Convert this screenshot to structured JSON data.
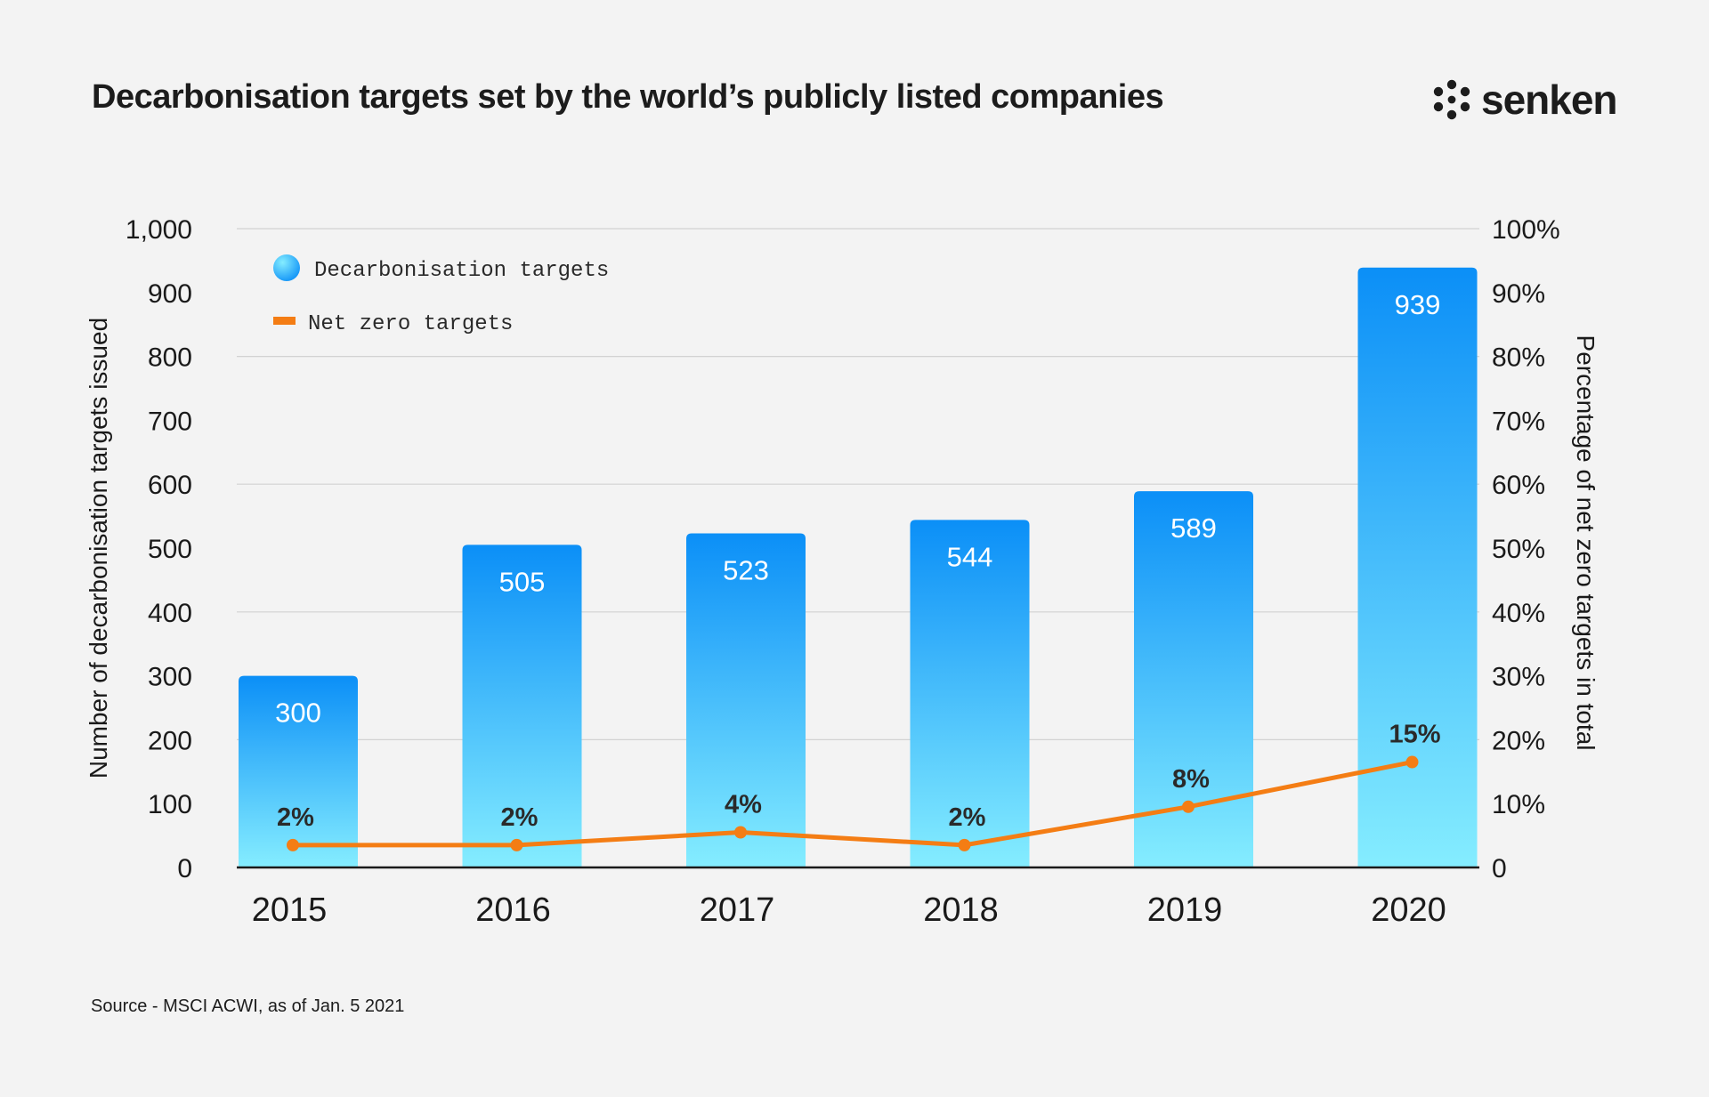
{
  "header": {
    "title": "Decarbonisation targets set by the world’s publicly listed companies",
    "brand": "senken"
  },
  "footer": {
    "source": "Source - MSCI ACWI, as of Jan. 5 2021"
  },
  "colors": {
    "bar_top": "#0b8ff7",
    "bar_bottom": "#85edff",
    "line": "#f47d14",
    "grid": "#d2d2d2",
    "axis": "#1a1a1a",
    "background": "#f3f3f3"
  },
  "chart_data": {
    "type": "bar",
    "title": "Decarbonisation targets set by the world’s publicly listed companies",
    "categories": [
      "2015",
      "2016",
      "2017",
      "2018",
      "2019",
      "2020"
    ],
    "series": [
      {
        "name": "Decarbonisation targets",
        "type": "bar",
        "axis": "left",
        "values": [
          300,
          505,
          523,
          544,
          589,
          939
        ],
        "labels": [
          "300",
          "505",
          "523",
          "544",
          "589",
          "939"
        ]
      },
      {
        "name": "Net zero targets",
        "type": "line",
        "axis": "right",
        "values": [
          2,
          2,
          4,
          2,
          8,
          15
        ],
        "labels": [
          "2%",
          "2%",
          "4%",
          "2%",
          "8%",
          "15%"
        ]
      }
    ],
    "ylabel": "Number of decarbonisation targets issued",
    "ylim": [
      0,
      1000
    ],
    "yticks": [
      "0",
      "100",
      "200",
      "300",
      "400",
      "500",
      "600",
      "700",
      "800",
      "900",
      "1,000"
    ],
    "y2label": "Percentage of net zero targets in total",
    "y2lim": [
      0,
      100
    ],
    "y2ticks": [
      "0",
      "10%",
      "20%",
      "30%",
      "40%",
      "50%",
      "60%",
      "70%",
      "80%",
      "90%",
      "100%"
    ],
    "legend": [
      "Decarbonisation targets",
      "Net zero targets"
    ],
    "legend_position": "top-left",
    "grid": true
  }
}
